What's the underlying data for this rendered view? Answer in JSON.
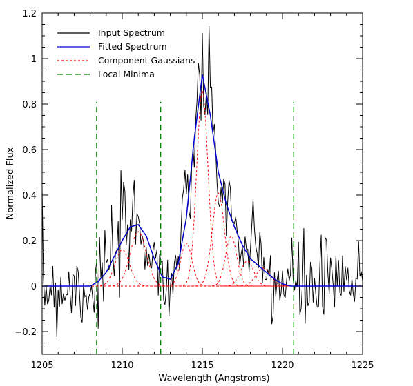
{
  "chart_data": {
    "type": "line",
    "title": "",
    "xlabel": "Wavelength (Angstroms)",
    "ylabel": "Normalized Flux",
    "xlim": [
      1205,
      1225
    ],
    "ylim": [
      -0.3,
      1.2
    ],
    "x_ticks": [
      1205,
      1210,
      1215,
      1220,
      1225
    ],
    "x_tick_labels": [
      "1205",
      "1210",
      "1215",
      "1220",
      "1225"
    ],
    "y_ticks": [
      -0.2,
      0,
      0.2,
      0.4,
      0.6,
      0.8,
      1,
      1.2
    ],
    "y_tick_labels": [
      "−0.2",
      "0",
      "0.2",
      "0.4",
      "0.6",
      "0.8",
      "1",
      "1.2"
    ],
    "grid": false,
    "legend_position": "top-left",
    "colors": {
      "input": "#000000",
      "fitted": "#0000cc",
      "components": "#ff0000",
      "minima": "#008000"
    },
    "series": [
      {
        "name": "Input Spectrum",
        "style": "solid",
        "noise_sigma": 0.11,
        "x_range": [
          1205,
          1225
        ],
        "approximate_shape": "fitted spectrum plus noise"
      },
      {
        "name": "Fitted Spectrum",
        "style": "solid",
        "x": [
          1205,
          1208,
          1208.5,
          1209,
          1209.5,
          1210,
          1210.5,
          1211,
          1211.5,
          1212,
          1212.5,
          1213,
          1213.5,
          1214,
          1214.5,
          1215,
          1215.5,
          1216,
          1216.5,
          1217,
          1217.5,
          1218,
          1218.5,
          1219,
          1219.5,
          1220,
          1220.5,
          1221,
          1225
        ],
        "y": [
          0,
          0,
          0.02,
          0.06,
          0.13,
          0.2,
          0.26,
          0.27,
          0.22,
          0.12,
          0.04,
          0.03,
          0.1,
          0.3,
          0.65,
          0.93,
          0.75,
          0.5,
          0.36,
          0.26,
          0.18,
          0.12,
          0.09,
          0.06,
          0.03,
          0.01,
          0,
          0,
          0
        ]
      },
      {
        "name": "Component Gaussians",
        "style": "dashed",
        "components": [
          {
            "center": 1210.0,
            "amplitude": 0.16,
            "sigma": 0.45
          },
          {
            "center": 1211.0,
            "amplitude": 0.24,
            "sigma": 0.5
          },
          {
            "center": 1214.0,
            "amplitude": 0.19,
            "sigma": 0.35
          },
          {
            "center": 1215.0,
            "amplitude": 0.86,
            "sigma": 0.35
          },
          {
            "center": 1216.0,
            "amplitude": 0.41,
            "sigma": 0.38
          },
          {
            "center": 1216.8,
            "amplitude": 0.22,
            "sigma": 0.35
          },
          {
            "center": 1217.8,
            "amplitude": 0.11,
            "sigma": 0.4
          },
          {
            "center": 1218.8,
            "amplitude": 0.08,
            "sigma": 0.45
          }
        ]
      },
      {
        "name": "Local Minima",
        "style": "long-dashed vertical",
        "x": [
          1208.4,
          1212.4,
          1220.7
        ],
        "y_range": [
          -0.3,
          0.81
        ]
      }
    ]
  },
  "legend": [
    {
      "label": "Input Spectrum",
      "color": "#000000",
      "dash": "solid"
    },
    {
      "label": "Fitted Spectrum",
      "color": "#0000cc",
      "dash": "solid"
    },
    {
      "label": "Component Gaussians",
      "color": "#ff0000",
      "dash": "dashed"
    },
    {
      "label": "Local Minima",
      "color": "#008000",
      "dash": "long-dashed"
    }
  ]
}
